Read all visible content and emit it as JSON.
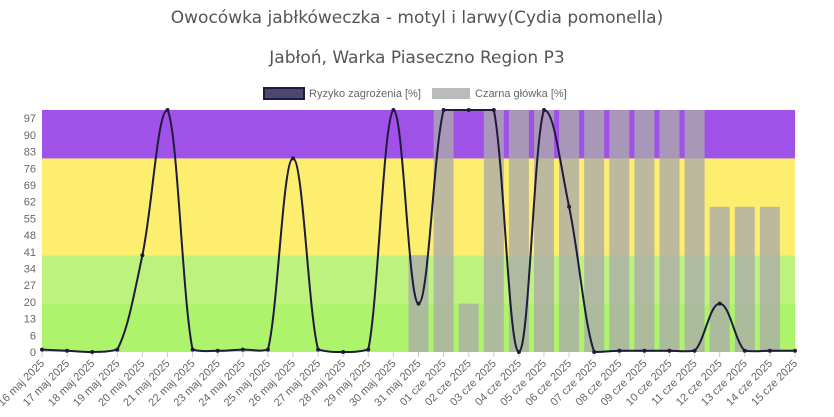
{
  "chart_data": {
    "type": "line+bar",
    "title": "Owocówka jabłkóweczka - motyl i larwy(Cydia pomonella)",
    "subtitle": "Jabłoń, Warka Piaseczno Region P3",
    "legend_position": "top",
    "ylim": [
      0,
      100
    ],
    "y_tick_labels": [
      "0",
      "6",
      "13",
      "20",
      "27",
      "34",
      "41",
      "48",
      "55",
      "62",
      "69",
      "76",
      "83",
      "90",
      "97"
    ],
    "categories": [
      "16 maj 2025",
      "17 maj 2025",
      "18 maj 2025",
      "19 maj 2025",
      "20 maj 2025",
      "21 maj 2025",
      "22 maj 2025",
      "23 maj 2025",
      "24 maj 2025",
      "25 maj 2025",
      "26 maj 2025",
      "27 maj 2025",
      "28 maj 2025",
      "29 maj 2025",
      "30 maj 2025",
      "31 maj 2025",
      "01 cze 2025",
      "02 cze 2025",
      "03 cze 2025",
      "04 cze 2025",
      "05 cze 2025",
      "06 cze 2025",
      "07 cze 2025",
      "08 cze 2025",
      "09 cze 2025",
      "10 cze 2025",
      "11 cze 2025",
      "12 cze 2025",
      "13 cze 2025",
      "14 cze 2025",
      "15 cze 2025"
    ],
    "bands": [
      {
        "from": 0,
        "to": 20,
        "color": "#adf36b"
      },
      {
        "from": 20,
        "to": 40,
        "color": "#bef27f"
      },
      {
        "from": 40,
        "to": 80,
        "color": "#fdee6f"
      },
      {
        "from": 80,
        "to": 100,
        "color": "#a052e8"
      }
    ],
    "series": [
      {
        "name": "Ryzyko zagrożenia [%]",
        "type": "line",
        "color": "#1f1b3d",
        "values": [
          1,
          0.5,
          0,
          1,
          40,
          100,
          1,
          0.5,
          1,
          1,
          80,
          1,
          0,
          1,
          100,
          20,
          100,
          100,
          100,
          0,
          100,
          60,
          0,
          0.5,
          0.5,
          0.5,
          0.5,
          20,
          0.5,
          0.5,
          0.5
        ]
      },
      {
        "name": "Czarna główka [%]",
        "type": "bar",
        "color": "#b8b8b8",
        "values": [
          null,
          null,
          null,
          null,
          null,
          null,
          null,
          null,
          null,
          null,
          null,
          null,
          null,
          null,
          null,
          40,
          100,
          20,
          100,
          100,
          100,
          100,
          100,
          100,
          100,
          100,
          100,
          60,
          60,
          60,
          null
        ]
      }
    ]
  }
}
